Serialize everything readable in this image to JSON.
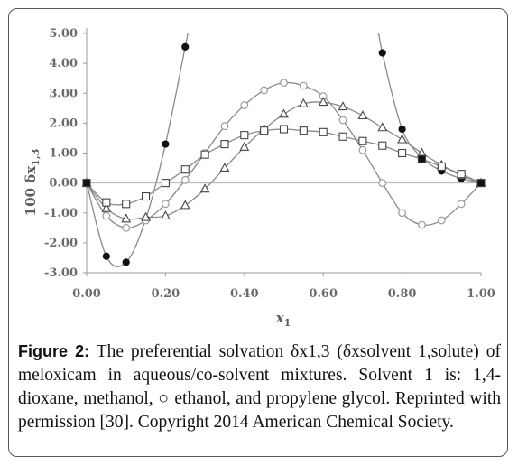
{
  "caption": {
    "label": "Figure 2:",
    "text": " The preferential solvation δx1,3 (δxsolvent 1,solute) of meloxicam in aqueous/co-solvent mixtures. Solvent 1 is: 1,4-dioxane, methanol, ○ ethanol, and propylene glycol. Reprinted with permission [30]. Copyright 2014 American Chemical Society."
  },
  "chart_data": {
    "type": "scatter",
    "xlabel": "x1",
    "ylabel": "100 δx1,3",
    "xlim": [
      0,
      1
    ],
    "ylim": [
      -3,
      5
    ],
    "x_ticks": [
      "0.00",
      "0.20",
      "0.40",
      "0.60",
      "0.80",
      "1.00"
    ],
    "y_ticks": [
      "-3.00",
      "-2.00",
      "-1.00",
      "0.00",
      "1.00",
      "2.00",
      "3.00",
      "4.00",
      "5.00"
    ],
    "grid": false,
    "colors": {
      "line": "#8a8a8a",
      "marker_edge": "#333333",
      "zero_line": "#b0b0b0",
      "axis": "#9a9a9a"
    },
    "series": [
      {
        "marker": "filled-circle",
        "x": [
          0.0,
          0.05,
          0.1,
          0.15,
          0.2,
          0.25,
          0.75,
          0.8,
          0.85,
          0.9,
          0.95,
          1.0
        ],
        "y": [
          0.0,
          -2.45,
          -2.65,
          -1.2,
          1.3,
          4.55,
          4.35,
          1.8,
          0.85,
          0.4,
          0.15,
          0.0
        ]
      },
      {
        "marker": "open-circle",
        "x": [
          0.0,
          0.05,
          0.1,
          0.15,
          0.2,
          0.25,
          0.3,
          0.35,
          0.4,
          0.45,
          0.5,
          0.55,
          0.6,
          0.65,
          0.7,
          0.75,
          0.8,
          0.85,
          0.9,
          0.95,
          1.0
        ],
        "y": [
          0.0,
          -1.1,
          -1.5,
          -1.25,
          -0.7,
          0.1,
          1.0,
          1.9,
          2.6,
          3.1,
          3.35,
          3.25,
          2.9,
          2.1,
          1.1,
          0.0,
          -1.0,
          -1.4,
          -1.25,
          -0.7,
          0.0
        ]
      },
      {
        "marker": "triangle",
        "x": [
          0.0,
          0.05,
          0.1,
          0.15,
          0.2,
          0.25,
          0.3,
          0.35,
          0.4,
          0.45,
          0.5,
          0.55,
          0.6,
          0.65,
          0.7,
          0.75,
          0.8,
          0.85,
          0.9,
          0.95,
          1.0
        ],
        "y": [
          0.0,
          -0.85,
          -1.2,
          -1.15,
          -1.1,
          -0.75,
          -0.2,
          0.5,
          1.2,
          1.8,
          2.3,
          2.65,
          2.7,
          2.55,
          2.25,
          1.85,
          1.45,
          1.0,
          0.6,
          0.25,
          0.0
        ]
      },
      {
        "marker": "square",
        "x": [
          0.0,
          0.05,
          0.1,
          0.15,
          0.2,
          0.25,
          0.3,
          0.35,
          0.4,
          0.45,
          0.5,
          0.55,
          0.6,
          0.65,
          0.7,
          0.75,
          0.8,
          0.85,
          0.9,
          0.95,
          1.0
        ],
        "y": [
          0.0,
          -0.65,
          -0.7,
          -0.45,
          0.0,
          0.45,
          0.95,
          1.3,
          1.6,
          1.75,
          1.8,
          1.75,
          1.7,
          1.55,
          1.4,
          1.25,
          1.0,
          0.8,
          0.55,
          0.3,
          0.0
        ]
      }
    ]
  }
}
